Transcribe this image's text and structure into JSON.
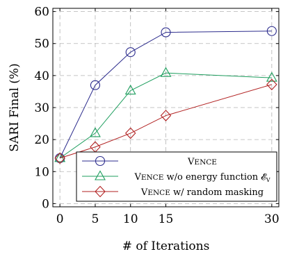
{
  "chart_data": {
    "type": "line",
    "xlabel": "# of Iterations",
    "ylabel": "SARI Final (%)",
    "x": [
      0,
      5,
      10,
      15,
      30
    ],
    "xticks": [
      0,
      5,
      10,
      15,
      30
    ],
    "yticks": [
      0,
      10,
      20,
      30,
      40,
      50,
      60
    ],
    "xlim": [
      -1,
      31
    ],
    "ylim": [
      -1,
      61
    ],
    "grid": true,
    "legend_position": "lower-right",
    "series": [
      {
        "name_lead": "V",
        "name_caps": "ENCE",
        "name_rest": "",
        "marker": "circle",
        "color": "#2b2b8c",
        "values": [
          14.2,
          37.0,
          47.3,
          53.5,
          53.9
        ]
      },
      {
        "name_lead": "V",
        "name_caps": "ENCE",
        "name_rest": " w/o energy function 𝓔",
        "name_sub": "V",
        "marker": "triangle",
        "color": "#1e9e5e",
        "values": [
          14.2,
          22.0,
          35.3,
          40.8,
          39.3
        ]
      },
      {
        "name_lead": "V",
        "name_caps": "ENCE",
        "name_rest": " w/ random masking",
        "marker": "diamond",
        "color": "#b22222",
        "values": [
          14.2,
          17.7,
          22.0,
          27.5,
          37.2
        ]
      }
    ]
  }
}
